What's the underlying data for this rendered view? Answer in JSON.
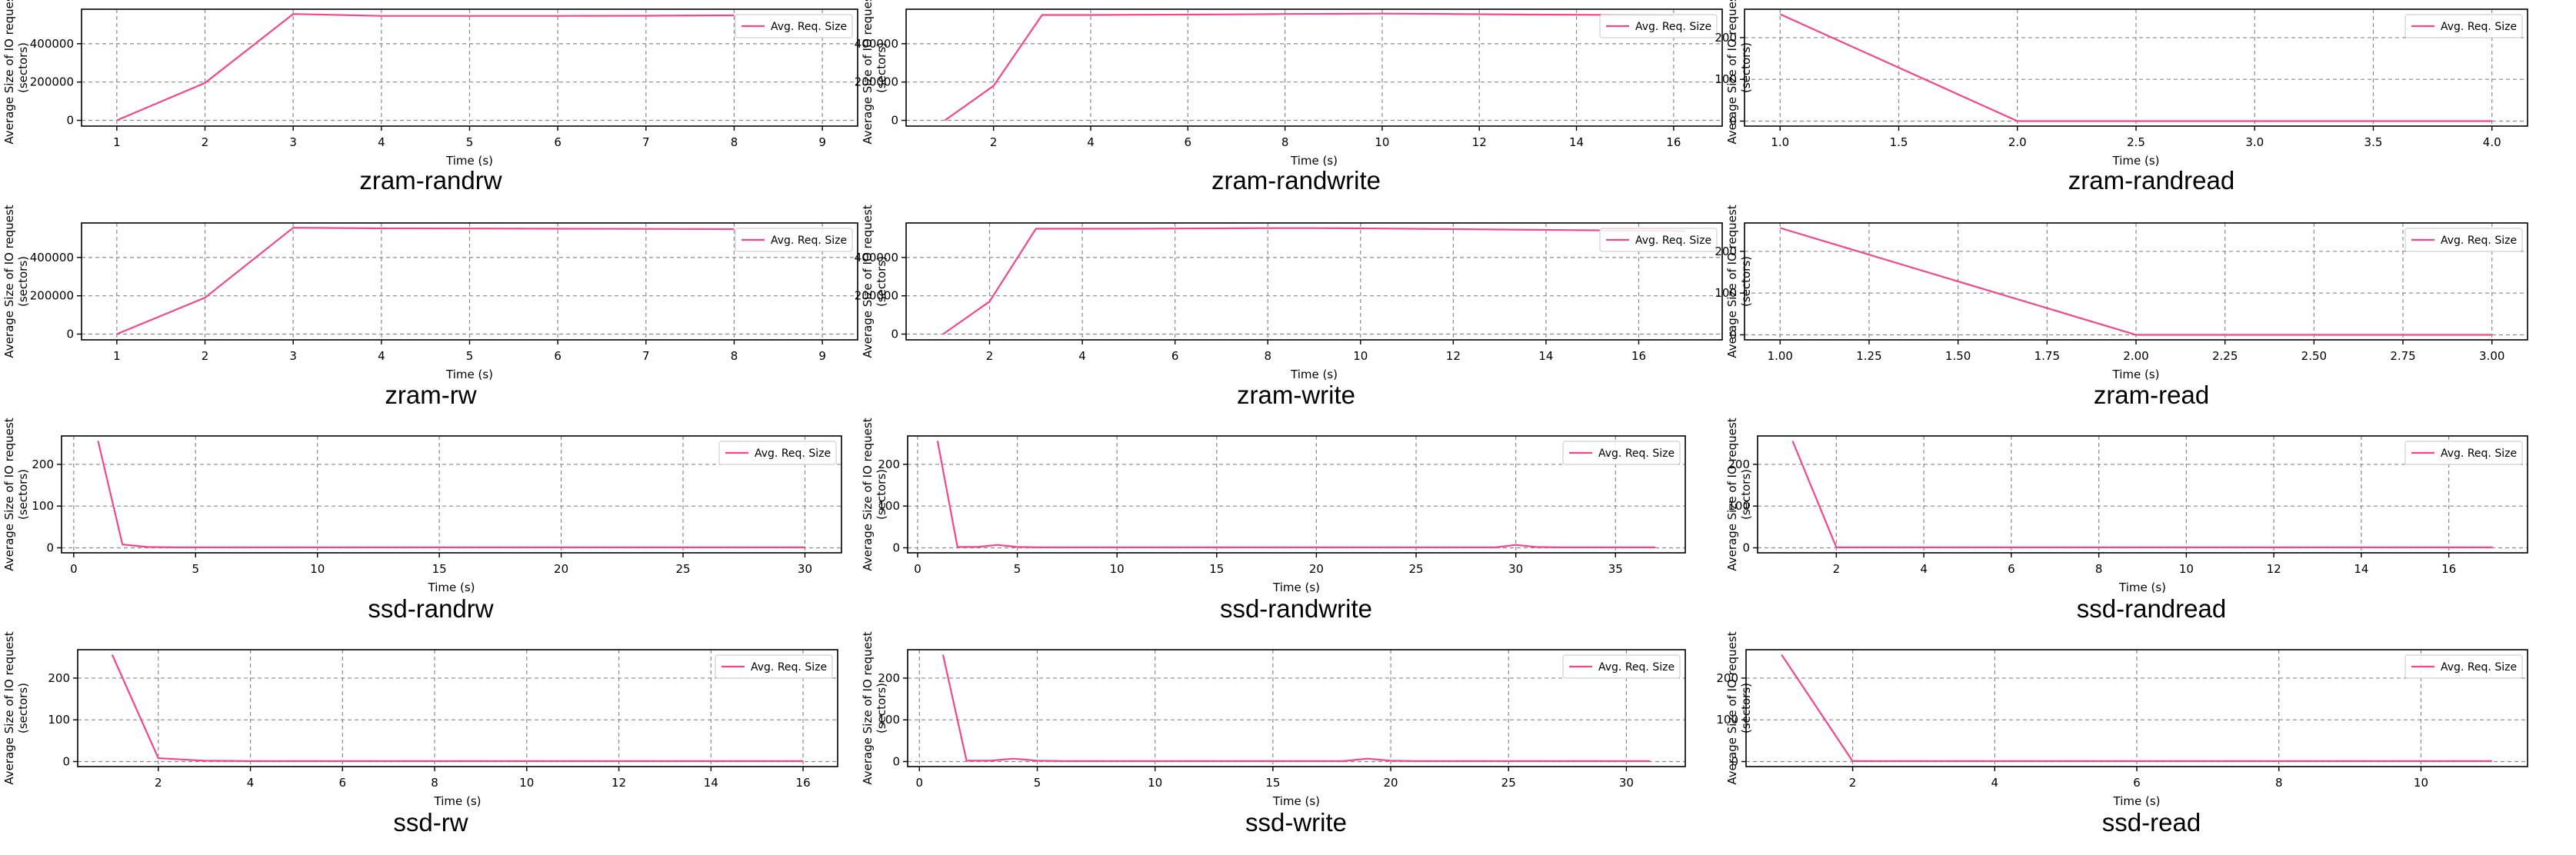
{
  "chart_data": [
    {
      "type": "line",
      "panel_title": "zram-randrw",
      "xlabel": "Time (s)",
      "ylabel": [
        "Average Size of IO request",
        "(sectors)"
      ],
      "legend": "Avg. Req. Size",
      "legend_position": "top-right",
      "grid": true,
      "series_color": "#f4468a",
      "xlim": [
        0.6,
        9.4
      ],
      "ylim": [
        -30000,
        580000
      ],
      "xticks": [
        1,
        2,
        3,
        4,
        5,
        6,
        7,
        8,
        9
      ],
      "xtick_labels": [
        "1",
        "2",
        "3",
        "4",
        "5",
        "6",
        "7",
        "8",
        "9"
      ],
      "yticks": [
        0,
        200000,
        400000
      ],
      "ytick_labels": [
        "0",
        "200000",
        "400000"
      ],
      "x": [
        1,
        2,
        3,
        4,
        5,
        6,
        7,
        8
      ],
      "y": [
        0,
        195000,
        555000,
        545000,
        545000,
        545000,
        546000,
        548000
      ]
    },
    {
      "type": "line",
      "panel_title": "zram-randwrite",
      "xlabel": "Time (s)",
      "ylabel": [
        "Average Size of IO request",
        "(sectors)"
      ],
      "legend": "Avg. Req. Size",
      "legend_position": "top-right",
      "grid": true,
      "series_color": "#f4468a",
      "xlim": [
        0.2,
        17
      ],
      "ylim": [
        -30000,
        580000
      ],
      "xticks": [
        2,
        4,
        6,
        8,
        10,
        12,
        14,
        16
      ],
      "xtick_labels": [
        "2",
        "4",
        "6",
        "8",
        "10",
        "12",
        "14",
        "16"
      ],
      "yticks": [
        0,
        200000,
        400000
      ],
      "ytick_labels": [
        "0",
        "200000",
        "400000"
      ],
      "x": [
        1,
        2,
        3,
        4,
        5,
        6,
        7,
        8,
        9,
        10,
        11,
        12,
        13,
        14,
        15,
        16
      ],
      "y": [
        0,
        180000,
        550000,
        550000,
        551000,
        552000,
        553000,
        555000,
        556000,
        557000,
        556000,
        554000,
        552000,
        551000,
        550000,
        549000
      ]
    },
    {
      "type": "line",
      "panel_title": "zram-randread",
      "xlabel": "Time (s)",
      "ylabel": [
        "Average Size of IO request",
        "(sectors)"
      ],
      "legend": "Avg. Req. Size",
      "legend_position": "top-right",
      "grid": true,
      "series_color": "#f4468a",
      "xlim": [
        0.85,
        4.15
      ],
      "ylim": [
        -12,
        268
      ],
      "xticks": [
        1,
        1.5,
        2,
        2.5,
        3,
        3.5,
        4
      ],
      "xtick_labels": [
        "1.0",
        "1.5",
        "2.0",
        "2.5",
        "3.0",
        "3.5",
        "4.0"
      ],
      "yticks": [
        0,
        100,
        200
      ],
      "ytick_labels": [
        "0",
        "100",
        "200"
      ],
      "x": [
        1,
        2,
        3,
        4
      ],
      "y": [
        256,
        0,
        0,
        0
      ]
    },
    {
      "type": "line",
      "panel_title": "zram-rw",
      "xlabel": "Time (s)",
      "ylabel": [
        "Average Size of IO request",
        "(sectors)"
      ],
      "legend": "Avg. Req. Size",
      "legend_position": "top-right",
      "grid": true,
      "series_color": "#f4468a",
      "xlim": [
        0.6,
        9.4
      ],
      "ylim": [
        -30000,
        580000
      ],
      "xticks": [
        1,
        2,
        3,
        4,
        5,
        6,
        7,
        8,
        9
      ],
      "xtick_labels": [
        "1",
        "2",
        "3",
        "4",
        "5",
        "6",
        "7",
        "8",
        "9"
      ],
      "yticks": [
        0,
        200000,
        400000
      ],
      "ytick_labels": [
        "0",
        "200000",
        "400000"
      ],
      "x": [
        1,
        2,
        3,
        4,
        5,
        6,
        7,
        8
      ],
      "y": [
        0,
        190000,
        555000,
        552000,
        551000,
        550000,
        549000,
        548000
      ]
    },
    {
      "type": "line",
      "panel_title": "zram-write",
      "xlabel": "Time (s)",
      "ylabel": [
        "Average Size of IO request",
        "(sectors)"
      ],
      "legend": "Avg. Req. Size",
      "legend_position": "top-right",
      "grid": true,
      "series_color": "#f4468a",
      "xlim": [
        0.2,
        17.8
      ],
      "ylim": [
        -30000,
        580000
      ],
      "xticks": [
        2,
        4,
        6,
        8,
        10,
        12,
        14,
        16
      ],
      "xtick_labels": [
        "2",
        "4",
        "6",
        "8",
        "10",
        "12",
        "14",
        "16"
      ],
      "yticks": [
        0,
        200000,
        400000
      ],
      "ytick_labels": [
        "0",
        "200000",
        "400000"
      ],
      "x": [
        1,
        2,
        3,
        4,
        5,
        6,
        7,
        8,
        9,
        10,
        11,
        12,
        13,
        14,
        15,
        16,
        17
      ],
      "y": [
        0,
        170000,
        550000,
        550000,
        550000,
        551000,
        552000,
        553000,
        553000,
        552000,
        550000,
        548000,
        546000,
        544000,
        542000,
        540000,
        538000
      ]
    },
    {
      "type": "line",
      "panel_title": "zram-read",
      "xlabel": "Time (s)",
      "ylabel": [
        "Average Size of IO request",
        "(sectors)"
      ],
      "legend": "Avg. Req. Size",
      "legend_position": "top-right",
      "grid": true,
      "series_color": "#f4468a",
      "xlim": [
        0.9,
        3.1
      ],
      "ylim": [
        -12,
        268
      ],
      "xticks": [
        1,
        1.25,
        1.5,
        1.75,
        2,
        2.25,
        2.5,
        2.75,
        3
      ],
      "xtick_labels": [
        "1.00",
        "1.25",
        "1.50",
        "1.75",
        "2.00",
        "2.25",
        "2.50",
        "2.75",
        "3.00"
      ],
      "yticks": [
        0,
        100,
        200
      ],
      "ytick_labels": [
        "0",
        "100",
        "200"
      ],
      "x": [
        1,
        2,
        3
      ],
      "y": [
        256,
        0,
        0
      ]
    },
    {
      "type": "line",
      "panel_title": "ssd-randrw",
      "xlabel": "Time (s)",
      "ylabel": [
        "Average Size of IO request",
        "(sectors)"
      ],
      "legend": "Avg. Req. Size",
      "legend_position": "top-right",
      "grid": true,
      "series_color": "#f4468a",
      "xlim": [
        -0.5,
        31.5
      ],
      "ylim": [
        -12,
        268
      ],
      "xticks": [
        0,
        5,
        10,
        15,
        20,
        25,
        30
      ],
      "xtick_labels": [
        "0",
        "5",
        "10",
        "15",
        "20",
        "25",
        "30"
      ],
      "yticks": [
        0,
        100,
        200
      ],
      "ytick_labels": [
        "0",
        "100",
        "200"
      ],
      "x": [
        1,
        2,
        3,
        4,
        5,
        6,
        7,
        8,
        9,
        10,
        11,
        12,
        13,
        14,
        15,
        16,
        17,
        18,
        19,
        20,
        21,
        22,
        23,
        24,
        25,
        26,
        27,
        28,
        29,
        30
      ],
      "y": [
        256,
        8,
        2,
        1,
        1,
        1,
        1,
        1,
        1,
        1,
        1,
        1,
        1,
        1,
        1,
        1,
        1,
        1,
        1,
        1,
        1,
        1,
        1,
        1,
        1,
        1,
        1,
        1,
        1,
        1
      ]
    },
    {
      "type": "line",
      "panel_title": "ssd-randwrite",
      "xlabel": "Time (s)",
      "ylabel": [
        "Average Size of IO request",
        "(sectors)"
      ],
      "legend": "Avg. Req. Size",
      "legend_position": "top-right",
      "grid": true,
      "series_color": "#f4468a",
      "xlim": [
        -0.5,
        38.5
      ],
      "ylim": [
        -12,
        268
      ],
      "xticks": [
        0,
        5,
        10,
        15,
        20,
        25,
        30,
        35
      ],
      "xtick_labels": [
        "0",
        "5",
        "10",
        "15",
        "20",
        "25",
        "30",
        "35"
      ],
      "yticks": [
        0,
        100,
        200
      ],
      "ytick_labels": [
        "0",
        "100",
        "200"
      ],
      "x": [
        1,
        2,
        3,
        4,
        5,
        6,
        7,
        8,
        9,
        10,
        11,
        12,
        13,
        14,
        15,
        16,
        17,
        18,
        19,
        20,
        21,
        22,
        23,
        24,
        25,
        26,
        27,
        28,
        29,
        30,
        31,
        32,
        33,
        34,
        35,
        36,
        37
      ],
      "y": [
        256,
        2,
        2,
        7,
        2,
        1,
        1,
        1,
        1,
        1,
        1,
        1,
        1,
        1,
        1,
        1,
        1,
        1,
        1,
        1,
        1,
        1,
        1,
        1,
        1,
        1,
        1,
        1,
        1,
        7,
        2,
        1,
        1,
        1,
        1,
        1,
        1
      ]
    },
    {
      "type": "line",
      "panel_title": "ssd-randread",
      "xlabel": "Time (s)",
      "ylabel": [
        "Average Size of IO request",
        "(sectors)"
      ],
      "legend": "Avg. Req. Size",
      "legend_position": "top-right",
      "grid": true,
      "series_color": "#f4468a",
      "xlim": [
        0.2,
        17.8
      ],
      "ylim": [
        -12,
        268
      ],
      "xticks": [
        2,
        4,
        6,
        8,
        10,
        12,
        14,
        16
      ],
      "xtick_labels": [
        "2",
        "4",
        "6",
        "8",
        "10",
        "12",
        "14",
        "16"
      ],
      "yticks": [
        0,
        100,
        200
      ],
      "ytick_labels": [
        "0",
        "100",
        "200"
      ],
      "x": [
        1,
        2,
        3,
        4,
        5,
        6,
        7,
        8,
        9,
        10,
        11,
        12,
        13,
        14,
        15,
        16,
        17
      ],
      "y": [
        256,
        1,
        1,
        1,
        1,
        1,
        1,
        1,
        1,
        1,
        1,
        1,
        1,
        1,
        1,
        1,
        1
      ]
    },
    {
      "type": "line",
      "panel_title": "ssd-rw",
      "xlabel": "Time (s)",
      "ylabel": [
        "Average Size of IO request",
        "(sectors)"
      ],
      "legend": "Avg. Req. Size",
      "legend_position": "top-right",
      "grid": true,
      "series_color": "#f4468a",
      "xlim": [
        0.25,
        16.75
      ],
      "ylim": [
        -12,
        268
      ],
      "xticks": [
        2,
        4,
        6,
        8,
        10,
        12,
        14,
        16
      ],
      "xtick_labels": [
        "2",
        "4",
        "6",
        "8",
        "10",
        "12",
        "14",
        "16"
      ],
      "yticks": [
        0,
        100,
        200
      ],
      "ytick_labels": [
        "0",
        "100",
        "200"
      ],
      "x": [
        1,
        2,
        3,
        4,
        5,
        6,
        7,
        8,
        9,
        10,
        11,
        12,
        13,
        14,
        15,
        16
      ],
      "y": [
        256,
        8,
        2,
        1,
        1,
        1,
        1,
        1,
        1,
        1,
        1,
        1,
        1,
        1,
        1,
        1
      ]
    },
    {
      "type": "line",
      "panel_title": "ssd-write",
      "xlabel": "Time (s)",
      "ylabel": [
        "Average Size of IO request",
        "(sectors)"
      ],
      "legend": "Avg. Req. Size",
      "legend_position": "top-right",
      "grid": true,
      "series_color": "#f4468a",
      "xlim": [
        -0.5,
        32.5
      ],
      "ylim": [
        -12,
        268
      ],
      "xticks": [
        0,
        5,
        10,
        15,
        20,
        25,
        30
      ],
      "xtick_labels": [
        "0",
        "5",
        "10",
        "15",
        "20",
        "25",
        "30"
      ],
      "yticks": [
        0,
        100,
        200
      ],
      "ytick_labels": [
        "0",
        "100",
        "200"
      ],
      "x": [
        1,
        2,
        3,
        4,
        5,
        6,
        7,
        8,
        9,
        10,
        11,
        12,
        13,
        14,
        15,
        16,
        17,
        18,
        19,
        20,
        21,
        22,
        23,
        24,
        25,
        26,
        27,
        28,
        29,
        30,
        31
      ],
      "y": [
        256,
        2,
        2,
        7,
        2,
        1,
        1,
        1,
        1,
        1,
        1,
        1,
        1,
        1,
        1,
        1,
        1,
        1,
        7,
        2,
        1,
        1,
        1,
        1,
        1,
        1,
        1,
        1,
        1,
        1,
        1
      ]
    },
    {
      "type": "line",
      "panel_title": "ssd-read",
      "xlabel": "Time (s)",
      "ylabel": [
        "Average Size of IO request",
        "(sectors)"
      ],
      "legend": "Avg. Req. Size",
      "legend_position": "top-right",
      "grid": true,
      "series_color": "#f4468a",
      "xlim": [
        0.5,
        11.5
      ],
      "ylim": [
        -12,
        268
      ],
      "xticks": [
        2,
        4,
        6,
        8,
        10
      ],
      "xtick_labels": [
        "2",
        "4",
        "6",
        "8",
        "10"
      ],
      "yticks": [
        0,
        100,
        200
      ],
      "ytick_labels": [
        "0",
        "100",
        "200"
      ],
      "x": [
        1,
        2,
        3,
        4,
        5,
        6,
        7,
        8,
        9,
        10,
        11
      ],
      "y": [
        256,
        1,
        1,
        1,
        1,
        1,
        1,
        1,
        1,
        1,
        1
      ]
    }
  ]
}
